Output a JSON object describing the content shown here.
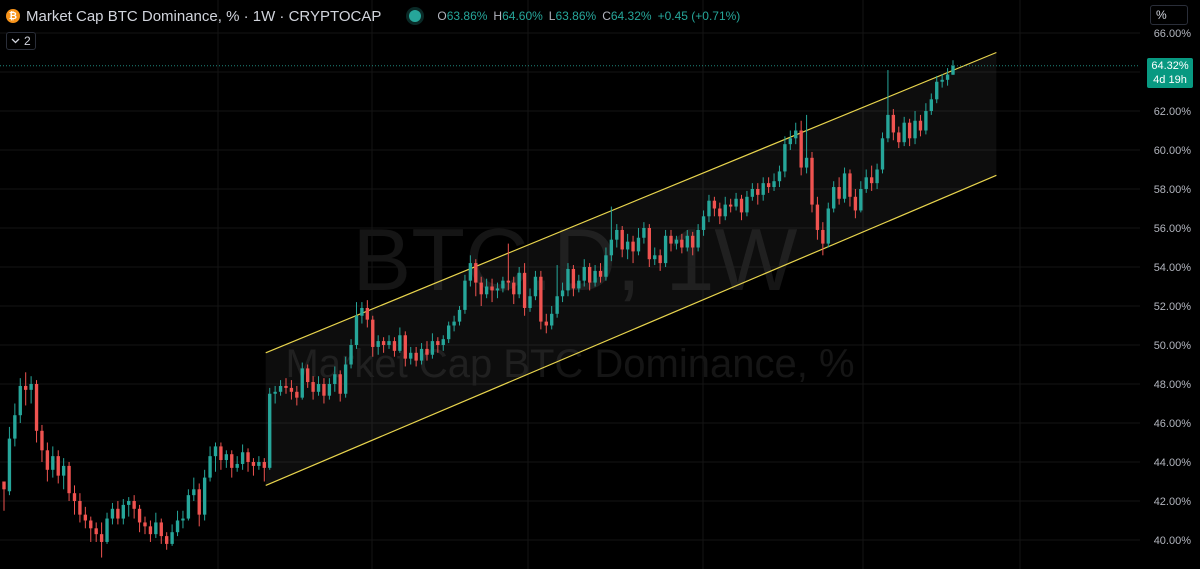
{
  "header": {
    "coin_glyph": "₿",
    "title": "Market Cap BTC Dominance, % · 1W · CRYPTOCAP",
    "ohlc": {
      "o_label": "O",
      "o_value": "63.86%",
      "h_label": "H",
      "h_value": "64.60%",
      "l_label": "L",
      "l_value": "63.86%",
      "c_label": "C",
      "c_value": "64.32%",
      "change": "+0.45 (+0.71%)"
    },
    "indicators_toggle": "2",
    "scale_mode": "%"
  },
  "watermark": {
    "symbol": "BTC.D, 1W",
    "name": "Market Cap BTC Dominance, %"
  },
  "last_price": {
    "value": "64.32%",
    "countdown": "4d 19h"
  },
  "colors": {
    "up": "#26a69a",
    "down": "#ef5350",
    "channel": "#e8d44d",
    "accent": "#089981"
  },
  "chart_data": {
    "type": "candlestick",
    "ylim": [
      39.5,
      66.5
    ],
    "y_ticks": [
      "40.00%",
      "42.00%",
      "44.00%",
      "46.00%",
      "48.00%",
      "50.00%",
      "52.00%",
      "54.00%",
      "56.00%",
      "58.00%",
      "60.00%",
      "62.00%",
      "64.00%",
      "66.00%"
    ],
    "y_tick_values": [
      40,
      42,
      44,
      46,
      48,
      50,
      52,
      54,
      56,
      58,
      60,
      62,
      64,
      66
    ],
    "candles": [
      [
        43.0,
        42.6,
        43.0,
        41.5
      ],
      [
        42.5,
        45.2,
        45.8,
        42.3
      ],
      [
        45.2,
        46.4,
        47.0,
        44.8
      ],
      [
        46.4,
        47.9,
        48.3,
        46.0
      ],
      [
        47.9,
        47.7,
        48.6,
        46.9
      ],
      [
        47.7,
        48.0,
        48.4,
        47.0
      ],
      [
        48.0,
        45.6,
        48.2,
        45.0
      ],
      [
        45.6,
        44.6,
        45.9,
        44.0
      ],
      [
        44.6,
        43.6,
        45.0,
        43.0
      ],
      [
        43.6,
        44.3,
        44.8,
        43.2
      ],
      [
        44.3,
        43.3,
        44.6,
        42.9
      ],
      [
        43.3,
        43.8,
        44.2,
        42.6
      ],
      [
        43.8,
        42.4,
        44.0,
        42.0
      ],
      [
        42.4,
        42.0,
        42.8,
        41.3
      ],
      [
        42.0,
        41.3,
        42.4,
        40.9
      ],
      [
        41.3,
        41.0,
        41.7,
        40.6
      ],
      [
        41.0,
        40.6,
        41.2,
        39.9
      ],
      [
        40.6,
        40.3,
        40.9,
        39.9
      ],
      [
        40.3,
        39.9,
        40.9,
        39.1
      ],
      [
        39.9,
        41.1,
        41.4,
        39.8
      ],
      [
        41.1,
        41.6,
        41.9,
        40.8
      ],
      [
        41.6,
        41.1,
        42.0,
        40.8
      ],
      [
        41.1,
        41.8,
        42.1,
        40.8
      ],
      [
        41.8,
        42.0,
        42.2,
        41.2
      ],
      [
        42.0,
        41.6,
        42.3,
        41.1
      ],
      [
        41.6,
        40.9,
        41.8,
        40.4
      ],
      [
        40.9,
        40.7,
        41.2,
        40.3
      ],
      [
        40.7,
        40.3,
        41.0,
        39.9
      ],
      [
        40.3,
        40.9,
        41.4,
        40.1
      ],
      [
        40.9,
        40.2,
        41.1,
        39.8
      ],
      [
        40.2,
        39.8,
        40.4,
        39.5
      ],
      [
        39.8,
        40.4,
        40.8,
        39.7
      ],
      [
        40.4,
        41.0,
        41.5,
        40.2
      ],
      [
        41.0,
        41.1,
        41.5,
        40.6
      ],
      [
        41.1,
        42.3,
        42.6,
        41.0
      ],
      [
        42.3,
        42.6,
        43.2,
        42.0
      ],
      [
        42.6,
        41.3,
        42.9,
        40.7
      ],
      [
        41.3,
        43.2,
        43.6,
        41.0
      ],
      [
        43.2,
        44.3,
        44.8,
        43.0
      ],
      [
        44.3,
        44.8,
        45.0,
        43.5
      ],
      [
        44.8,
        44.1,
        45.0,
        43.6
      ],
      [
        44.1,
        44.4,
        44.6,
        43.7
      ],
      [
        44.4,
        43.7,
        44.6,
        43.2
      ],
      [
        43.7,
        43.9,
        44.3,
        43.5
      ],
      [
        43.9,
        44.5,
        44.9,
        43.6
      ],
      [
        44.5,
        44.0,
        44.7,
        43.5
      ],
      [
        44.0,
        43.8,
        44.2,
        43.3
      ],
      [
        43.8,
        44.0,
        44.3,
        43.6
      ],
      [
        44.0,
        43.7,
        44.2,
        43.0
      ],
      [
        43.7,
        47.5,
        47.8,
        43.6
      ],
      [
        47.5,
        47.6,
        47.9,
        47.0
      ],
      [
        47.6,
        47.9,
        48.2,
        47.4
      ],
      [
        47.9,
        47.8,
        48.3,
        47.5
      ],
      [
        47.8,
        47.6,
        48.2,
        47.2
      ],
      [
        47.6,
        47.3,
        47.9,
        46.9
      ],
      [
        47.3,
        48.8,
        49.1,
        47.2
      ],
      [
        48.8,
        48.1,
        49.0,
        47.8
      ],
      [
        48.1,
        47.6,
        48.4,
        47.2
      ],
      [
        47.6,
        48.0,
        48.4,
        47.4
      ],
      [
        48.0,
        47.4,
        48.3,
        47.0
      ],
      [
        47.4,
        48.0,
        48.3,
        47.2
      ],
      [
        48.0,
        48.5,
        48.9,
        47.6
      ],
      [
        48.5,
        47.5,
        48.7,
        47.1
      ],
      [
        47.5,
        49.0,
        49.4,
        47.3
      ],
      [
        49.0,
        50.0,
        50.3,
        48.8
      ],
      [
        50.0,
        51.5,
        52.2,
        49.8
      ],
      [
        51.5,
        51.9,
        52.2,
        51.1
      ],
      [
        51.9,
        51.3,
        52.3,
        50.9
      ],
      [
        51.3,
        49.9,
        51.5,
        49.4
      ],
      [
        49.9,
        50.2,
        50.5,
        49.5
      ],
      [
        50.2,
        50.0,
        50.4,
        49.6
      ],
      [
        50.0,
        50.2,
        50.5,
        49.8
      ],
      [
        50.2,
        49.7,
        50.4,
        49.4
      ],
      [
        49.7,
        50.5,
        50.9,
        49.6
      ],
      [
        50.5,
        49.3,
        50.7,
        48.9
      ],
      [
        49.3,
        49.6,
        49.9,
        49.0
      ],
      [
        49.6,
        49.2,
        49.9,
        48.9
      ],
      [
        49.2,
        49.8,
        50.1,
        49.0
      ],
      [
        49.8,
        49.5,
        50.2,
        49.2
      ],
      [
        49.5,
        50.2,
        50.6,
        49.3
      ],
      [
        50.2,
        50.0,
        50.4,
        49.6
      ],
      [
        50.0,
        50.3,
        50.5,
        49.7
      ],
      [
        50.3,
        51.0,
        51.2,
        50.1
      ],
      [
        51.0,
        51.2,
        51.5,
        50.7
      ],
      [
        51.2,
        51.8,
        52.0,
        51.0
      ],
      [
        51.8,
        53.3,
        53.6,
        51.6
      ],
      [
        53.3,
        54.2,
        54.6,
        53.0
      ],
      [
        54.2,
        53.2,
        54.4,
        52.5
      ],
      [
        53.2,
        52.6,
        53.5,
        52.0
      ],
      [
        52.6,
        53.0,
        53.4,
        52.4
      ],
      [
        53.0,
        52.8,
        53.4,
        52.2
      ],
      [
        52.8,
        52.9,
        53.2,
        52.4
      ],
      [
        52.9,
        53.3,
        53.5,
        52.7
      ],
      [
        53.3,
        53.2,
        55.2,
        52.8
      ],
      [
        53.2,
        52.6,
        53.5,
        52.1
      ],
      [
        52.6,
        53.7,
        54.0,
        52.4
      ],
      [
        53.7,
        51.9,
        54.2,
        51.5
      ],
      [
        51.9,
        52.5,
        52.9,
        51.7
      ],
      [
        52.5,
        53.5,
        53.8,
        52.3
      ],
      [
        53.5,
        51.2,
        53.8,
        50.8
      ],
      [
        51.2,
        51.0,
        51.6,
        50.6
      ],
      [
        51.0,
        51.6,
        52.0,
        50.8
      ],
      [
        51.6,
        52.5,
        54.1,
        51.4
      ],
      [
        52.5,
        52.8,
        53.2,
        52.2
      ],
      [
        52.8,
        53.9,
        54.2,
        52.5
      ],
      [
        53.9,
        52.9,
        54.1,
        52.5
      ],
      [
        52.9,
        53.3,
        53.6,
        52.7
      ],
      [
        53.3,
        54.0,
        54.4,
        53.0
      ],
      [
        54.0,
        53.2,
        54.2,
        52.8
      ],
      [
        53.2,
        53.8,
        54.1,
        53.0
      ],
      [
        53.8,
        53.5,
        54.2,
        53.2
      ],
      [
        53.5,
        54.6,
        55.0,
        53.3
      ],
      [
        54.6,
        55.4,
        57.1,
        54.3
      ],
      [
        55.4,
        55.9,
        56.2,
        55.0
      ],
      [
        55.9,
        54.9,
        56.1,
        54.5
      ],
      [
        54.9,
        55.3,
        55.7,
        54.4
      ],
      [
        55.3,
        54.8,
        55.6,
        54.2
      ],
      [
        54.8,
        55.5,
        56.0,
        54.6
      ],
      [
        55.5,
        56.0,
        56.3,
        55.2
      ],
      [
        56.0,
        54.4,
        56.2,
        54.0
      ],
      [
        54.4,
        54.6,
        55.0,
        54.1
      ],
      [
        54.6,
        54.2,
        54.9,
        53.8
      ],
      [
        54.2,
        55.6,
        55.9,
        54.0
      ],
      [
        55.6,
        55.2,
        55.9,
        54.8
      ],
      [
        55.2,
        55.4,
        55.6,
        54.9
      ],
      [
        55.4,
        55.0,
        55.7,
        54.7
      ],
      [
        55.0,
        55.6,
        55.9,
        54.8
      ],
      [
        55.6,
        55.0,
        55.8,
        54.6
      ],
      [
        55.0,
        55.9,
        56.2,
        54.8
      ],
      [
        55.9,
        56.6,
        56.9,
        55.6
      ],
      [
        56.6,
        57.4,
        57.7,
        56.3
      ],
      [
        57.4,
        57.0,
        57.6,
        56.6
      ],
      [
        57.0,
        56.6,
        57.3,
        56.2
      ],
      [
        56.6,
        57.2,
        57.6,
        56.4
      ],
      [
        57.2,
        57.1,
        57.5,
        56.8
      ],
      [
        57.1,
        57.5,
        57.8,
        56.9
      ],
      [
        57.5,
        56.8,
        57.7,
        56.4
      ],
      [
        56.8,
        57.6,
        57.9,
        56.6
      ],
      [
        57.6,
        58.0,
        58.3,
        57.4
      ],
      [
        58.0,
        57.7,
        58.3,
        57.2
      ],
      [
        57.7,
        58.3,
        58.6,
        57.4
      ],
      [
        58.3,
        58.1,
        58.6,
        57.8
      ],
      [
        58.1,
        58.4,
        58.8,
        57.9
      ],
      [
        58.4,
        58.9,
        59.2,
        58.1
      ],
      [
        58.9,
        60.3,
        60.7,
        58.6
      ],
      [
        60.3,
        60.6,
        61.0,
        60.0
      ],
      [
        60.6,
        61.0,
        61.4,
        60.3
      ],
      [
        61.0,
        59.1,
        61.5,
        58.7
      ],
      [
        59.1,
        59.6,
        61.8,
        58.8
      ],
      [
        59.6,
        57.2,
        59.9,
        56.8
      ],
      [
        57.2,
        55.9,
        57.6,
        55.4
      ],
      [
        55.9,
        55.2,
        56.3,
        54.6
      ],
      [
        55.2,
        57.0,
        57.3,
        55.0
      ],
      [
        57.0,
        58.1,
        58.4,
        56.8
      ],
      [
        58.1,
        57.5,
        58.6,
        57.2
      ],
      [
        57.5,
        58.8,
        59.1,
        57.3
      ],
      [
        58.8,
        57.6,
        59.0,
        57.1
      ],
      [
        57.6,
        56.9,
        58.0,
        56.5
      ],
      [
        56.9,
        58.0,
        58.4,
        56.8
      ],
      [
        58.0,
        58.6,
        59.0,
        57.8
      ],
      [
        58.6,
        58.3,
        59.2,
        57.9
      ],
      [
        58.3,
        59.0,
        59.3,
        58.0
      ],
      [
        59.0,
        60.6,
        60.9,
        58.8
      ],
      [
        60.6,
        61.8,
        64.1,
        60.4
      ],
      [
        61.8,
        60.9,
        62.1,
        60.5
      ],
      [
        60.9,
        60.4,
        61.2,
        60.1
      ],
      [
        60.4,
        61.4,
        61.7,
        60.2
      ],
      [
        61.4,
        60.6,
        61.6,
        60.2
      ],
      [
        60.6,
        61.5,
        62.0,
        60.3
      ],
      [
        61.5,
        61.0,
        61.8,
        60.7
      ],
      [
        61.0,
        62.0,
        62.4,
        60.8
      ],
      [
        62.0,
        62.6,
        62.9,
        61.8
      ],
      [
        62.6,
        63.5,
        63.8,
        62.4
      ],
      [
        63.5,
        63.6,
        63.9,
        63.2
      ],
      [
        63.6,
        63.87,
        64.2,
        63.3
      ],
      [
        63.86,
        64.32,
        64.6,
        63.86
      ]
    ],
    "channel": {
      "upper": {
        "start_index": 49,
        "start_value": 49.6,
        "end_index": 183,
        "end_value": 65.0
      },
      "lower": {
        "start_index": 49,
        "start_value": 42.8,
        "end_index": 183,
        "end_value": 58.7
      }
    },
    "last_close": 64.32
  }
}
